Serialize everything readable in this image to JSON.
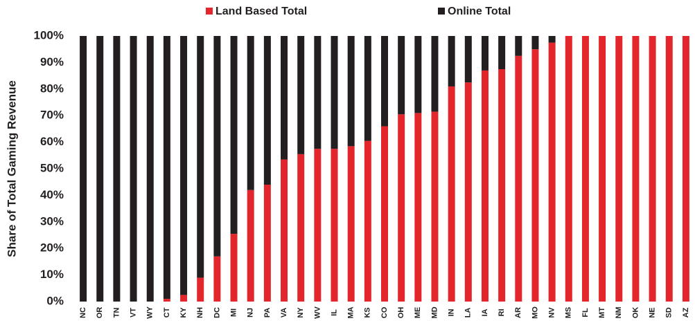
{
  "chart_data": {
    "type": "stacked_bar",
    "y_label": "Share of Total Gaming Revenue",
    "categories": [
      "NC",
      "OR",
      "TN",
      "VT",
      "WY",
      "CT",
      "KY",
      "NH",
      "DC",
      "MI",
      "NJ",
      "PA",
      "VA",
      "NY",
      "WV",
      "IL",
      "MA",
      "KS",
      "CO",
      "OH",
      "ME",
      "MD",
      "IN",
      "LA",
      "IA",
      "RI",
      "AR",
      "MO",
      "NV",
      "MS",
      "FL",
      "MT",
      "NM",
      "OK",
      "NE",
      "SD",
      "AZ"
    ],
    "series": [
      {
        "name": "Land Based Total",
        "color": "#e3262b",
        "values": [
          0,
          0,
          0,
          0,
          0,
          1,
          2.5,
          9,
          17,
          25.5,
          42,
          44,
          53.5,
          55.5,
          57.5,
          57.5,
          58.5,
          60.5,
          66,
          70.5,
          71,
          71.5,
          81,
          82.5,
          87,
          87.5,
          92.5,
          95,
          97.5,
          100,
          100,
          100,
          100,
          100,
          100,
          100,
          100
        ]
      },
      {
        "name": "Online Total",
        "color": "#231f20",
        "values": [
          100,
          100,
          100,
          100,
          100,
          99,
          97.5,
          91,
          83,
          74.5,
          58,
          56,
          46.5,
          44.5,
          42.5,
          42.5,
          41.5,
          39.5,
          34,
          29.5,
          29,
          28.5,
          19,
          17.5,
          13,
          12.5,
          7.5,
          5,
          2.5,
          0,
          0,
          0,
          0,
          0,
          0,
          0,
          0
        ]
      }
    ],
    "ylim": [
      0,
      100
    ],
    "yticks": [
      {
        "value": 0,
        "label": "0%"
      },
      {
        "value": 10,
        "label": "10%"
      },
      {
        "value": 20,
        "label": "20%"
      },
      {
        "value": 30,
        "label": "30%"
      },
      {
        "value": 40,
        "label": "40%"
      },
      {
        "value": 50,
        "label": "50%"
      },
      {
        "value": 60,
        "label": "60%"
      },
      {
        "value": 70,
        "label": "70%"
      },
      {
        "value": 80,
        "label": "80%"
      },
      {
        "value": 90,
        "label": "90%"
      },
      {
        "value": 100,
        "label": "100%"
      }
    ],
    "legend": "top"
  }
}
